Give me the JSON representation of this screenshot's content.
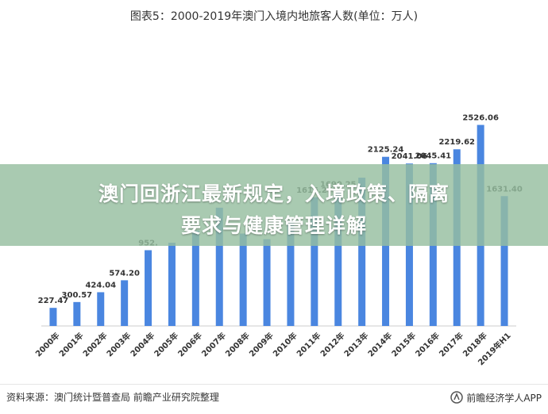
{
  "title": "图表5：2000-2019年澳门入境内地旅客人数(单位：万人)",
  "overlay": {
    "line1": "澳门回浙江最新规定，入境政策、隔离",
    "line2": "要求与健康管理详解"
  },
  "footer": {
    "source": "资料来源：澳门统计暨普查局 前瞻产业研究院整理",
    "brand": "前瞻经济学人APP",
    "brand_icon": "brand-logo-icon"
  },
  "colors": {
    "bar": "#4a86e0",
    "overlay": "#96bea0",
    "axis": "#cccccc",
    "text": "#333333"
  },
  "chart_data": {
    "type": "bar",
    "categories": [
      "2000年",
      "2001年",
      "2002年",
      "2003年",
      "2004年",
      "2005年",
      "2006年",
      "2007年",
      "2008年",
      "2009年",
      "2010年",
      "2011年",
      "2012年",
      "2013年",
      "2014年",
      "2015年",
      "2016年",
      "2017年",
      "2018年",
      "2019年H1"
    ],
    "values": [
      227.47,
      300.57,
      424.04,
      574.2,
      952.0,
      1046.0,
      1198.0,
      1486.0,
      1161.0,
      1090.0,
      1322.91,
      1616.27,
      1690.25,
      1863.0,
      2125.24,
      2041.06,
      2045.41,
      2219.62,
      2526.06,
      1631.4
    ],
    "labels": [
      "227.47",
      "300.57",
      "424.04",
      "574.20",
      "952.",
      "",
      "",
      "",
      "",
      "",
      "",
      "1616.27",
      "1690.25",
      "",
      "2125.24",
      "2041.06",
      "2045.41",
      "2219.62",
      "2526.06",
      "1631.40"
    ],
    "ylim": [
      0,
      2800
    ],
    "grid": false,
    "legend": "none"
  }
}
